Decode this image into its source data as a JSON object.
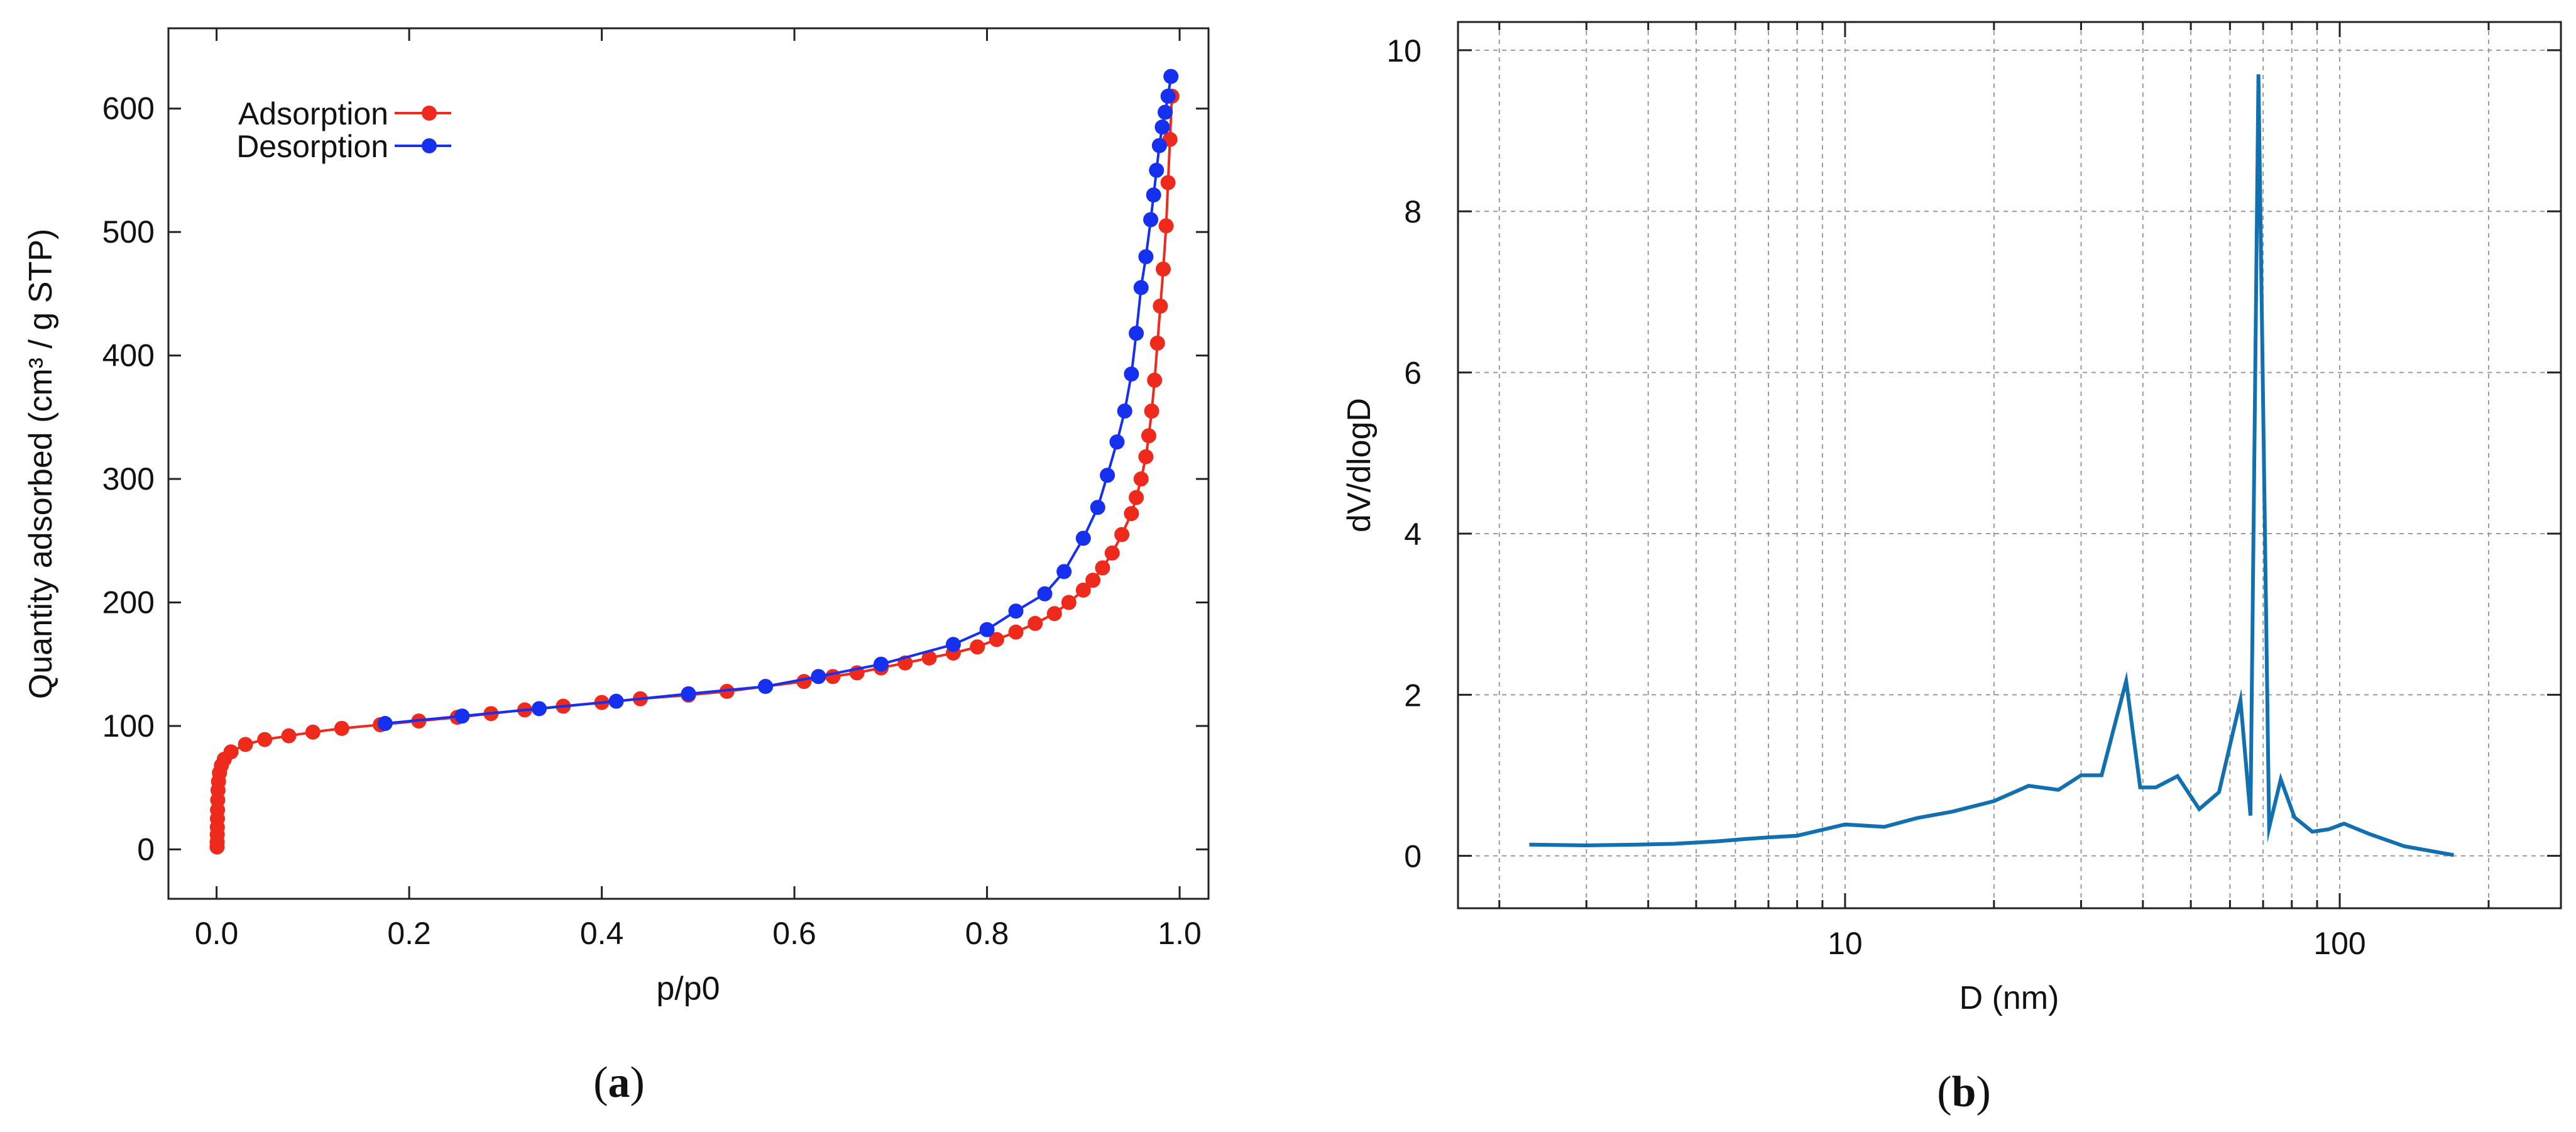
{
  "chart_data": [
    {
      "panel_label": "a",
      "type": "scatter",
      "xlabel": "p/p0",
      "ylabel": "Quantity adsorbed (cm³ / g STP)",
      "xlim": [
        -0.05,
        1.03
      ],
      "ylim": [
        -40,
        665
      ],
      "x_ticks": [
        "0.0",
        "0.2",
        "0.4",
        "0.6",
        "0.8",
        "1.0"
      ],
      "x_tick_values": [
        0,
        0.2,
        0.4,
        0.6,
        0.8,
        1.0
      ],
      "y_ticks": [
        "0",
        "100",
        "200",
        "300",
        "400",
        "500",
        "600"
      ],
      "y_tick_values": [
        0,
        100,
        200,
        300,
        400,
        500,
        600
      ],
      "grid": false,
      "legend_position": "top-left",
      "series": [
        {
          "name": "Adsorption",
          "color": "#ee2a1c",
          "x": [
            0.0005,
            0.0006,
            0.0007,
            0.0008,
            0.0009,
            0.001,
            0.0012,
            0.0015,
            0.002,
            0.003,
            0.005,
            0.008,
            0.015,
            0.03,
            0.05,
            0.075,
            0.1,
            0.13,
            0.17,
            0.21,
            0.25,
            0.285,
            0.32,
            0.36,
            0.4,
            0.44,
            0.49,
            0.53,
            0.57,
            0.61,
            0.64,
            0.665,
            0.69,
            0.715,
            0.74,
            0.765,
            0.79,
            0.81,
            0.83,
            0.85,
            0.87,
            0.885,
            0.9,
            0.91,
            0.92,
            0.93,
            0.94,
            0.95,
            0.955,
            0.96,
            0.965,
            0.968,
            0.971,
            0.974,
            0.977,
            0.98,
            0.983,
            0.986,
            0.988,
            0.99,
            0.992
          ],
          "y": [
            2,
            6,
            12,
            18,
            25,
            32,
            40,
            48,
            55,
            62,
            68,
            73,
            79,
            85,
            89,
            92,
            95,
            98,
            101,
            104,
            107,
            110,
            113,
            116,
            119,
            122,
            125,
            128,
            132,
            136,
            140,
            143,
            147,
            151,
            155,
            159,
            164,
            170,
            176,
            183,
            191,
            200,
            210,
            218,
            228,
            240,
            255,
            272,
            285,
            300,
            318,
            335,
            355,
            380,
            410,
            440,
            470,
            505,
            540,
            575,
            610
          ]
        },
        {
          "name": "Desorption",
          "color": "#1530ee",
          "x": [
            0.175,
            0.255,
            0.335,
            0.415,
            0.49,
            0.57,
            0.625,
            0.69,
            0.765,
            0.8,
            0.83,
            0.86,
            0.88,
            0.9,
            0.915,
            0.925,
            0.935,
            0.943,
            0.95,
            0.955,
            0.96,
            0.965,
            0.97,
            0.973,
            0.976,
            0.979,
            0.982,
            0.985,
            0.988,
            0.991
          ],
          "y": [
            102,
            108,
            114,
            120,
            126,
            132,
            140,
            150,
            166,
            178,
            193,
            207,
            225,
            252,
            277,
            303,
            330,
            355,
            385,
            418,
            455,
            480,
            510,
            530,
            550,
            570,
            585,
            597,
            610,
            626
          ]
        }
      ]
    },
    {
      "panel_label": "b",
      "type": "line",
      "xlabel": "D (nm)",
      "ylabel": "dV/dlogD",
      "x_scale": "log",
      "xlim": [
        1.65,
        280
      ],
      "ylim": [
        -0.65,
        10.35
      ],
      "x_ticks": [
        "10",
        "100"
      ],
      "x_tick_values": [
        10,
        100
      ],
      "y_ticks": [
        "0",
        "2",
        "4",
        "6",
        "8",
        "10"
      ],
      "y_tick_values": [
        0,
        2,
        4,
        6,
        8,
        10
      ],
      "grid": true,
      "series": [
        {
          "color": "#1170b0",
          "x": [
            2.3,
            3.0,
            3.8,
            4.5,
            5.5,
            6.3,
            7.0,
            8.0,
            10.0,
            12.0,
            14.0,
            16.5,
            20.0,
            23.5,
            27.0,
            30.0,
            33.0,
            37.0,
            39.5,
            42.5,
            47.0,
            52.0,
            57.0,
            63.0,
            66.0,
            68.5,
            72.0,
            76.0,
            81.0,
            88.0,
            95.0,
            102.0,
            115.0,
            135.0,
            170.0
          ],
          "y": [
            0.14,
            0.13,
            0.14,
            0.15,
            0.18,
            0.21,
            0.23,
            0.25,
            0.39,
            0.36,
            0.47,
            0.55,
            0.68,
            0.87,
            0.82,
            1.0,
            1.0,
            2.17,
            0.85,
            0.85,
            0.99,
            0.58,
            0.79,
            1.93,
            0.5,
            9.7,
            0.35,
            0.95,
            0.48,
            0.3,
            0.33,
            0.4,
            0.27,
            0.12,
            0.01
          ]
        }
      ]
    }
  ]
}
